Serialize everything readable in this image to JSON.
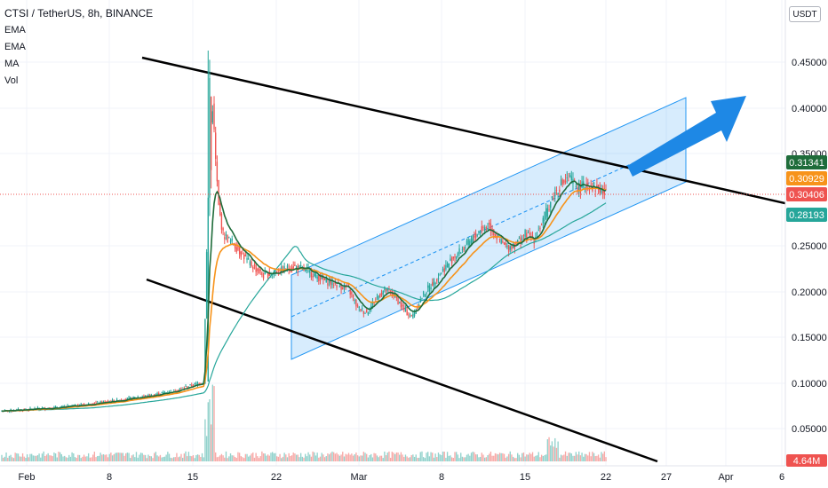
{
  "chart_data": {
    "type": "candlestick",
    "symbol_header": "CTSI / TetherUS, 8h, BINANCE",
    "indicators": [
      "EMA",
      "EMA",
      "MA",
      "Vol"
    ],
    "currency": "USDT",
    "y_ticks": [
      "0.45000",
      "0.40000",
      "0.35000",
      "0.25000",
      "0.20000",
      "0.15000",
      "0.10000",
      "0.05000"
    ],
    "x_ticks": [
      "Feb",
      "8",
      "15",
      "22",
      "Mar",
      "8",
      "15",
      "22",
      "27",
      "Apr",
      "6"
    ],
    "price_badges": [
      {
        "label": "0.31341",
        "color": "#1e6c3a"
      },
      {
        "label": "0.30929",
        "color": "#f7931a"
      },
      {
        "label": "0.30406",
        "color": "#ef5350"
      },
      {
        "label": "0.28193",
        "color": "#26a69a"
      }
    ],
    "volume_badge": {
      "label": "4.64M",
      "color": "#ef5350"
    },
    "colors": {
      "up": "#26a69a",
      "down": "#ef5350",
      "ema_fast": "#1e6c3a",
      "ema_slow": "#f7931a",
      "ma": "#26a69a",
      "channel": "#2196f3",
      "arrow": "#1e88e5",
      "trendline": "#000000"
    }
  }
}
